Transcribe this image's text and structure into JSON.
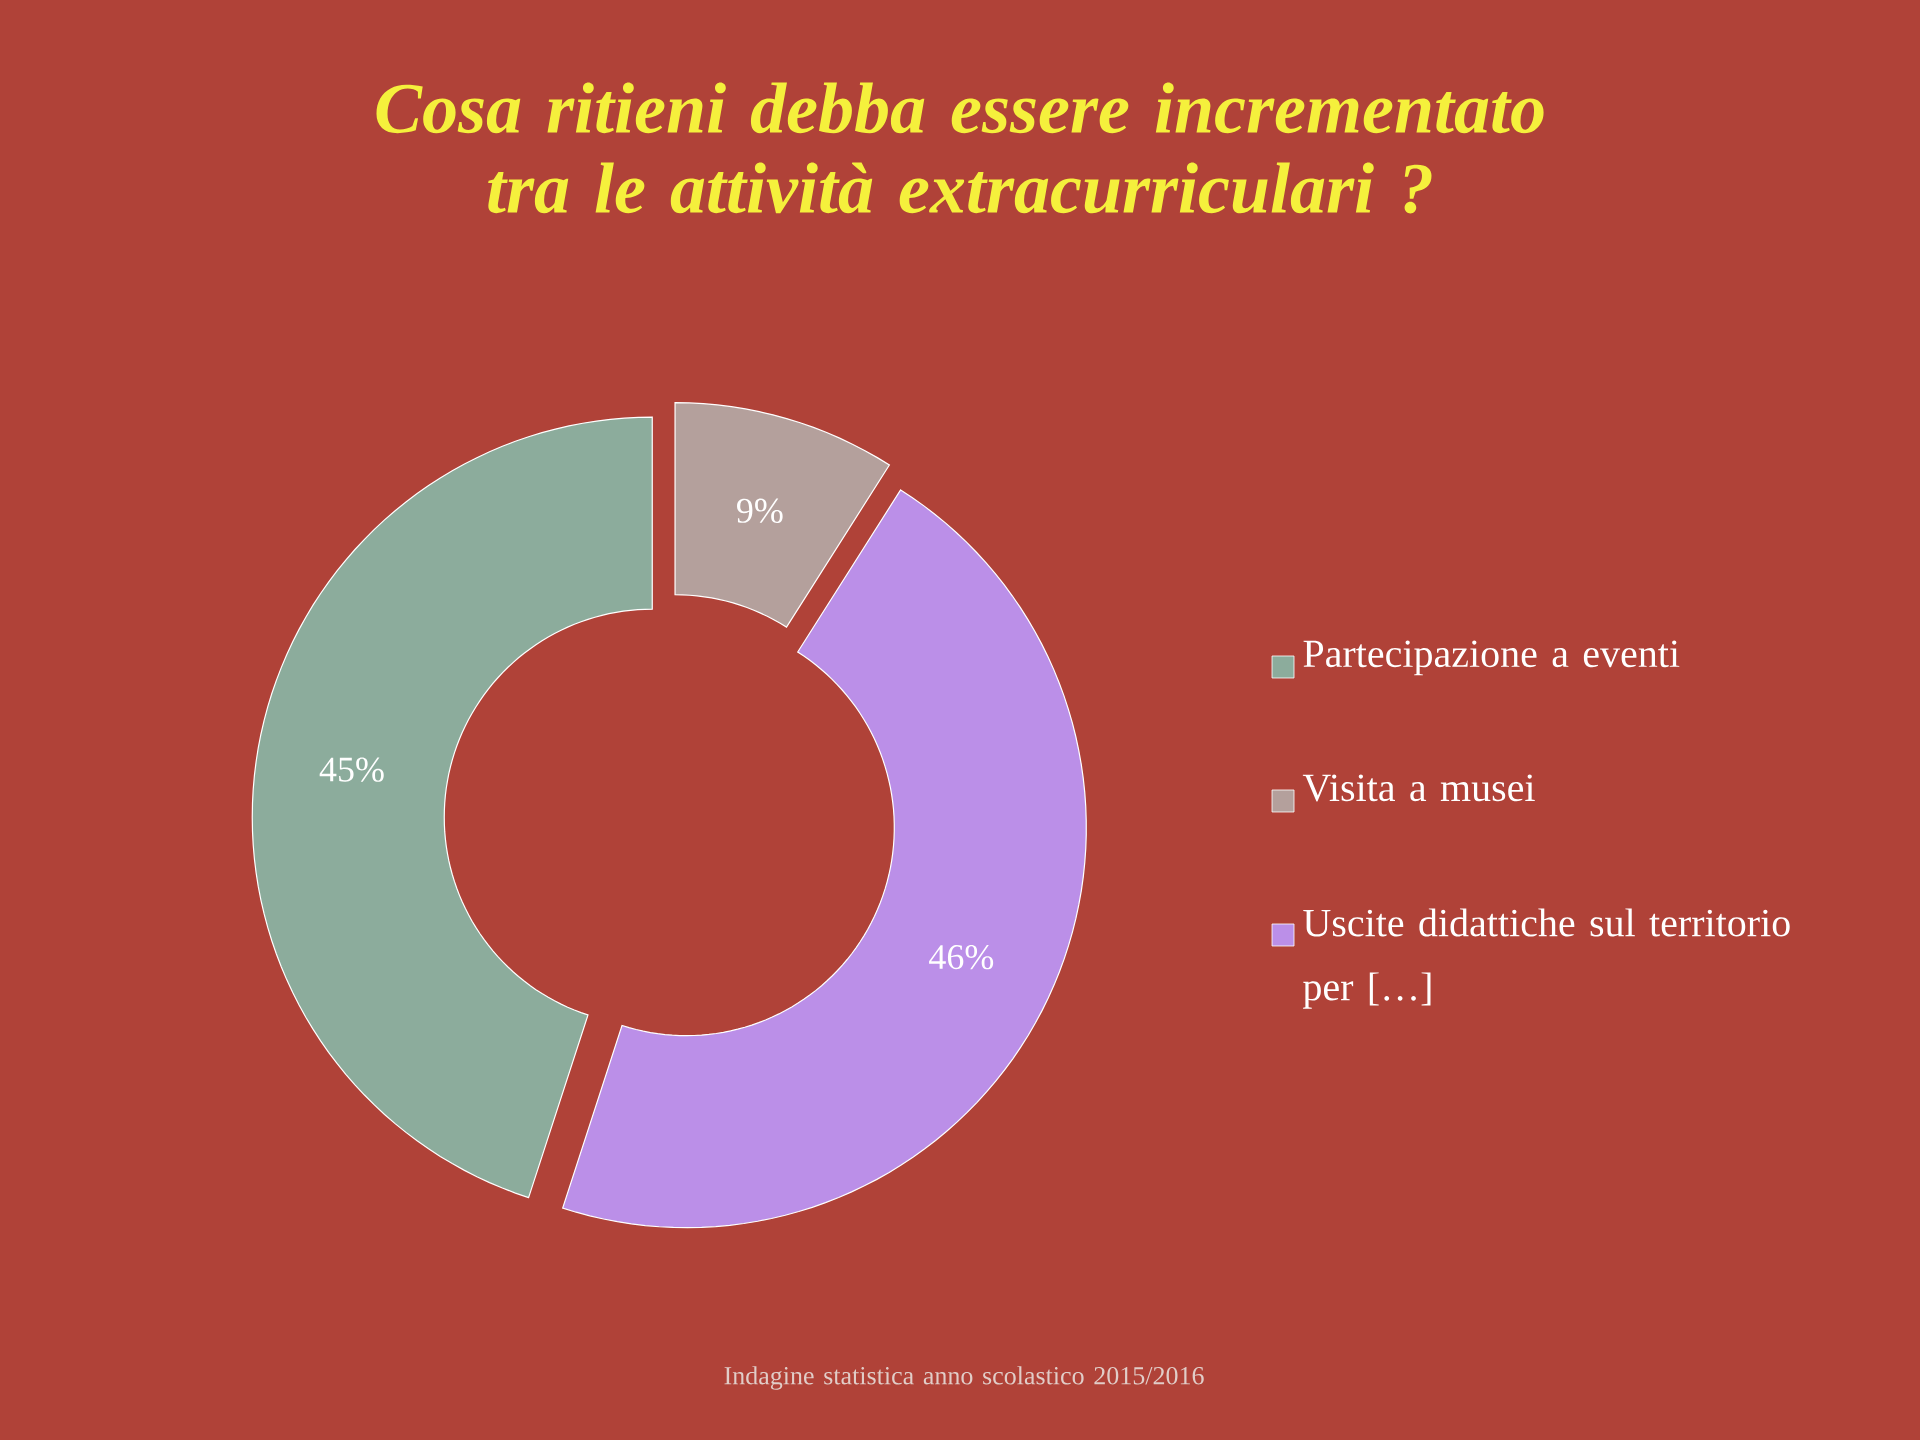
{
  "chart_data": {
    "type": "donut",
    "title": "Cosa ritieni debba essere incrementato tra le attività extracurriculari ?",
    "categories": [
      "Partecipazione a eventi",
      "Visita a musei",
      "Uscite didattiche sul territorio per […]"
    ],
    "values": [
      45,
      9,
      46
    ],
    "value_labels": [
      "45%",
      "9%",
      "46%"
    ],
    "colors": [
      "#8cac9c",
      "#b4a09c",
      "#bb8fe8"
    ],
    "legend": "right",
    "annotations": [
      "Indagine statistica anno scolastico 2015/2016"
    ]
  }
}
